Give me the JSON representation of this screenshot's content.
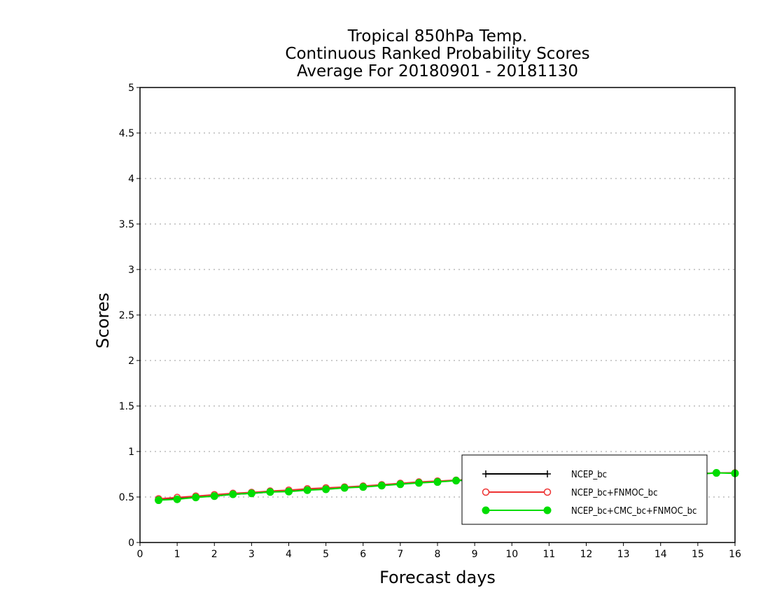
{
  "chart_data": {
    "type": "line",
    "title": [
      "Tropical 850hPa Temp.",
      "Continuous Ranked Probability Scores",
      "Average For 20180901 - 20181130"
    ],
    "xlabel": "Forecast days",
    "ylabel": "Scores",
    "xlim": [
      0,
      16
    ],
    "ylim": [
      0,
      5
    ],
    "x_ticks": [
      "0",
      "1",
      "2",
      "3",
      "4",
      "5",
      "6",
      "7",
      "8",
      "9",
      "10",
      "11",
      "12",
      "13",
      "14",
      "15",
      "16"
    ],
    "y_ticks": [
      "0",
      "0.5",
      "1",
      "1.5",
      "2",
      "2.5",
      "3",
      "3.5",
      "4",
      "4.5",
      "5"
    ],
    "grid": "horizontal-dotted",
    "legend_position": "bottom-right",
    "x": [
      0.5,
      1,
      1.5,
      2,
      2.5,
      3,
      3.5,
      4,
      4.5,
      5,
      5.5,
      6,
      6.5,
      7,
      7.5,
      8,
      8.5,
      9,
      9.5,
      10,
      10.5,
      11,
      11.5,
      12,
      12.5,
      13,
      13.5,
      14,
      14.5,
      15,
      15.5,
      16
    ],
    "series": [
      {
        "name": "NCEP_bc",
        "color": "#000000",
        "marker": "plus",
        "values": [
          0.47,
          0.48,
          0.5,
          0.51,
          0.53,
          0.54,
          0.555,
          0.565,
          0.58,
          0.59,
          0.605,
          0.615,
          0.63,
          0.645,
          0.66,
          0.67,
          0.68,
          0.69,
          0.7,
          0.705,
          0.71,
          0.715,
          0.72,
          0.725,
          0.73,
          0.735,
          0.74,
          0.745,
          0.75,
          0.755,
          0.765,
          0.765
        ]
      },
      {
        "name": "NCEP_bc+FNMOC_bc",
        "color": "#ee3333",
        "marker": "open-circle",
        "values": [
          0.48,
          0.495,
          0.51,
          0.525,
          0.54,
          0.55,
          0.565,
          0.575,
          0.59,
          0.6,
          0.61,
          0.62,
          0.635,
          0.65,
          0.665,
          0.675,
          0.685,
          0.695,
          0.7,
          0.705,
          0.71,
          0.715,
          0.72,
          0.725,
          0.73,
          0.735,
          0.74,
          0.745,
          0.75,
          0.755,
          0.765,
          0.765
        ]
      },
      {
        "name": "NCEP_bc+CMC_bc+FNMOC_bc",
        "color": "#00dd00",
        "marker": "filled-circle",
        "values": [
          0.465,
          0.475,
          0.495,
          0.51,
          0.53,
          0.54,
          0.555,
          0.56,
          0.575,
          0.585,
          0.6,
          0.61,
          0.625,
          0.64,
          0.655,
          0.665,
          0.68,
          0.69,
          0.695,
          0.7,
          0.705,
          0.71,
          0.715,
          0.72,
          0.725,
          0.73,
          0.735,
          0.74,
          0.745,
          0.75,
          0.765,
          0.76
        ]
      }
    ]
  }
}
